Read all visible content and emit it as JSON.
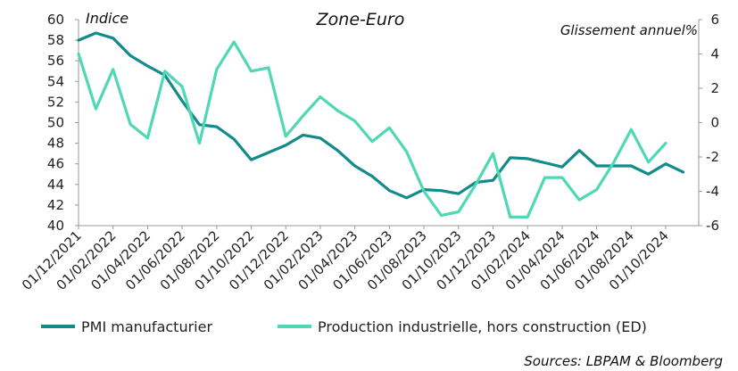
{
  "chart_data": {
    "type": "line",
    "title": "Zone-Euro",
    "left_axis_label": "Indice",
    "right_axis_label": "Glissement annuel%",
    "source": "Sources: LBPAM & Bloomberg",
    "left_ylim": [
      40,
      60
    ],
    "left_yticks": [
      "40",
      "42",
      "44",
      "46",
      "48",
      "50",
      "52",
      "54",
      "56",
      "58",
      "60"
    ],
    "right_ylim": [
      -6,
      6
    ],
    "right_yticks": [
      "-6",
      "-4",
      "-2",
      "0",
      "2",
      "4",
      "6"
    ],
    "x_tick_labels": [
      "01/12/2021",
      "01/02/2022",
      "01/04/2022",
      "01/06/2022",
      "01/08/2022",
      "01/10/2022",
      "01/12/2022",
      "01/02/2023",
      "01/04/2023",
      "01/06/2023",
      "01/08/2023",
      "01/10/2023",
      "01/12/2023",
      "01/02/2024",
      "01/04/2024",
      "01/06/2024",
      "01/08/2024",
      "01/10/2024"
    ],
    "grid": false,
    "legend_position": "bottom",
    "series": [
      {
        "name": "PMI manufacturier",
        "axis": "left",
        "color": "#138b8b",
        "x_start": "2021-12",
        "values": [
          58.0,
          58.7,
          58.2,
          56.5,
          55.5,
          54.6,
          52.1,
          49.8,
          49.6,
          48.4,
          46.4,
          47.1,
          47.8,
          48.8,
          48.5,
          47.3,
          45.8,
          44.8,
          43.4,
          42.7,
          43.5,
          43.4,
          43.1,
          44.2,
          44.4,
          46.6,
          46.5,
          46.1,
          45.7,
          47.3,
          45.8,
          45.8,
          45.8,
          45.0,
          46.0,
          45.2
        ]
      },
      {
        "name": "Production industrielle, hors construction (ED)",
        "axis": "right",
        "color": "#4fd8b4",
        "x_start": "2021-12",
        "values": [
          4.0,
          0.8,
          3.1,
          -0.1,
          -0.9,
          3.0,
          2.1,
          -1.2,
          3.1,
          4.7,
          3.0,
          3.2,
          -0.8,
          0.4,
          1.5,
          0.7,
          0.1,
          -1.1,
          -0.3,
          -1.7,
          -4.0,
          -5.4,
          -5.2,
          -3.6,
          -1.8,
          -5.5,
          -5.5,
          -3.2,
          -3.2,
          -4.5,
          -3.9,
          -2.3,
          -0.4,
          -2.3,
          -1.2
        ]
      }
    ]
  }
}
